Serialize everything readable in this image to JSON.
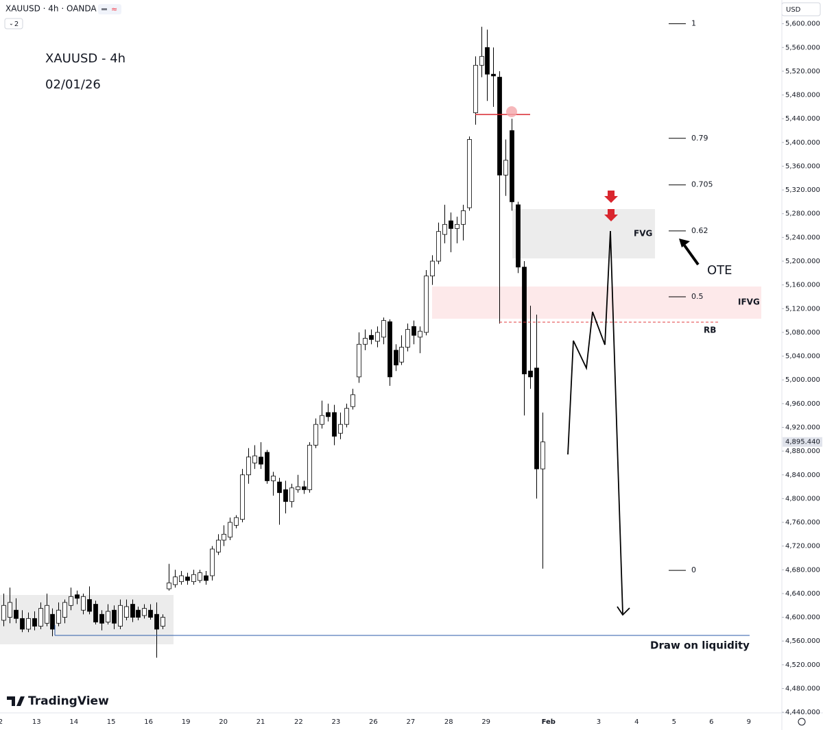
{
  "header": {
    "symbol": "XAUUSD · 4h · OANDA",
    "indicator_count": 2,
    "currency": "USD"
  },
  "watermark": "TradingView",
  "chart_data": {
    "type": "candlestick",
    "title": "XAUUSD - 4h",
    "subtitle": "02/01/26",
    "open": [
      4595,
      4600,
      4612,
      4598,
      4580,
      4598,
      4585,
      4590,
      4605,
      4590,
      4600,
      4620,
      4638,
      4612,
      4630,
      4622,
      4605,
      4592,
      4612,
      4585,
      4600,
      4622,
      4612,
      4603,
      4612,
      4605,
      4585,
      4648,
      4655,
      4660,
      4668,
      4660,
      4662,
      4670,
      4670,
      4710,
      4730,
      4735,
      4755,
      4765,
      4840,
      4860,
      4870,
      4878,
      4830,
      4828,
      4815,
      4795,
      4815,
      4820,
      4815,
      4890,
      4925,
      4945,
      4945,
      4910,
      4925,
      4955,
      5005,
      5060,
      5075,
      5065,
      5072,
      5098,
      5050,
      5030,
      5055,
      5090,
      5072,
      5080,
      5175,
      5200,
      5245,
      5268,
      5255,
      5262,
      5290,
      5450,
      5530,
      5560,
      5515,
      5510,
      5345,
      5420,
      5295,
      5190,
      5015,
      5020,
      4850
    ],
    "high": [
      4640,
      4650,
      4632,
      4612,
      4608,
      4610,
      4625,
      4640,
      4615,
      4625,
      4630,
      4650,
      4645,
      4640,
      4652,
      4628,
      4612,
      4622,
      4620,
      4630,
      4630,
      4630,
      4618,
      4622,
      4622,
      4625,
      4605,
      4690,
      4680,
      4678,
      4675,
      4680,
      4680,
      4678,
      4720,
      4740,
      4755,
      4768,
      4772,
      4850,
      4885,
      4890,
      4895,
      4882,
      4845,
      4835,
      4830,
      4825,
      4840,
      4830,
      4895,
      4935,
      4965,
      4960,
      4958,
      4945,
      4960,
      4985,
      5080,
      5085,
      5085,
      5090,
      5105,
      5102,
      5060,
      5075,
      5095,
      5100,
      5090,
      5185,
      5210,
      5265,
      5295,
      5282,
      5275,
      5295,
      5410,
      5545,
      5595,
      5590,
      5560,
      5520,
      5405,
      5440,
      5300,
      5200,
      5125,
      5110,
      4945
    ],
    "low": [
      4585,
      4590,
      4590,
      4575,
      4575,
      4578,
      4580,
      4585,
      4568,
      4585,
      4590,
      4612,
      4622,
      4605,
      4605,
      4588,
      4578,
      4588,
      4580,
      4580,
      4595,
      4592,
      4595,
      4598,
      4596,
      4532,
      4580,
      4645,
      4650,
      4655,
      4655,
      4655,
      4658,
      4655,
      4662,
      4705,
      4720,
      4730,
      4750,
      4760,
      4825,
      4850,
      4850,
      4825,
      4805,
      4756,
      4775,
      4785,
      4810,
      4808,
      4810,
      4885,
      4918,
      4930,
      4890,
      4900,
      4920,
      4950,
      4995,
      5050,
      5060,
      5055,
      5060,
      4990,
      5015,
      5025,
      5048,
      5060,
      5045,
      5075,
      5160,
      5195,
      5230,
      5215,
      5230,
      5235,
      5285,
      5430,
      5510,
      5470,
      5460,
      5095,
      5310,
      5285,
      5180,
      4940,
      4985,
      4800,
      4682
    ],
    "close": [
      4620,
      4625,
      4598,
      4580,
      4598,
      4585,
      4615,
      4620,
      4580,
      4612,
      4625,
      4635,
      4632,
      4635,
      4610,
      4592,
      4590,
      4610,
      4590,
      4620,
      4618,
      4600,
      4600,
      4615,
      4600,
      4580,
      4600,
      4658,
      4668,
      4670,
      4662,
      4672,
      4675,
      4662,
      4715,
      4730,
      4740,
      4760,
      4768,
      4840,
      4870,
      4872,
      4858,
      4830,
      4838,
      4810,
      4795,
      4818,
      4820,
      4815,
      4890,
      4925,
      4940,
      4938,
      4905,
      4925,
      4952,
      4975,
      5060,
      5070,
      5068,
      5080,
      5100,
      5005,
      5025,
      5055,
      5085,
      5075,
      5082,
      5175,
      5200,
      5250,
      5262,
      5255,
      5262,
      5285,
      5405,
      5530,
      5545,
      5515,
      5512,
      5345,
      5370,
      5300,
      5190,
      5010,
      5005,
      4850,
      4895.44
    ],
    "up_color": "#ffffff",
    "down_color": "#000000",
    "wick_color": "#000000",
    "ylim": [
      4439,
      5640
    ],
    "yticks": [
      {
        "value": 5600,
        "label": "5,600.000"
      },
      {
        "value": 5560,
        "label": "5,560.000"
      },
      {
        "value": 5520,
        "label": "5,520.000"
      },
      {
        "value": 5480,
        "label": "5,480.000"
      },
      {
        "value": 5440,
        "label": "5,440.000"
      },
      {
        "value": 5400,
        "label": "5,400.000"
      },
      {
        "value": 5360,
        "label": "5,360.000"
      },
      {
        "value": 5320,
        "label": "5,320.000"
      },
      {
        "value": 5280,
        "label": "5,280.000"
      },
      {
        "value": 5240,
        "label": "5,240.000"
      },
      {
        "value": 5200,
        "label": "5,200.000"
      },
      {
        "value": 5160,
        "label": "5,160.000"
      },
      {
        "value": 5120,
        "label": "5,120.000"
      },
      {
        "value": 5080,
        "label": "5,080.000"
      },
      {
        "value": 5040,
        "label": "5,040.000"
      },
      {
        "value": 5000,
        "label": "5,000.000"
      },
      {
        "value": 4960,
        "label": "4,960.000"
      },
      {
        "value": 4920,
        "label": "4,920.000"
      },
      {
        "value": 4880,
        "label": "4,880.000"
      },
      {
        "value": 4840,
        "label": "4,840.000"
      },
      {
        "value": 4800,
        "label": "4,800.000"
      },
      {
        "value": 4760,
        "label": "4,760.000"
      },
      {
        "value": 4720,
        "label": "4,720.000"
      },
      {
        "value": 4680,
        "label": "4,680.000"
      },
      {
        "value": 4640,
        "label": "4,640.000"
      },
      {
        "value": 4600,
        "label": "4,600.000"
      },
      {
        "value": 4560,
        "label": "4,560.000"
      },
      {
        "value": 4520,
        "label": "4,520.000"
      },
      {
        "value": 4480,
        "label": "4,480.000"
      },
      {
        "value": 4440,
        "label": "4,440.000"
      }
    ],
    "xlim": [
      -0.56,
      127.1
    ],
    "xticks": [
      {
        "value": -0.45,
        "label": "2"
      },
      {
        "value": 5.4,
        "label": "13"
      },
      {
        "value": 11.5,
        "label": "14"
      },
      {
        "value": 17.6,
        "label": "15"
      },
      {
        "value": 23.7,
        "label": "16"
      },
      {
        "value": 29.8,
        "label": "19"
      },
      {
        "value": 35.9,
        "label": "20"
      },
      {
        "value": 42,
        "label": "21"
      },
      {
        "value": 48.2,
        "label": "22"
      },
      {
        "value": 54.3,
        "label": "23"
      },
      {
        "value": 60.4,
        "label": "26"
      },
      {
        "value": 66.5,
        "label": "27"
      },
      {
        "value": 72.7,
        "label": "28"
      },
      {
        "value": 78.8,
        "label": "29"
      },
      {
        "value": 89,
        "label": "Feb"
      },
      {
        "value": 97.2,
        "label": "3"
      },
      {
        "value": 103.4,
        "label": "4"
      },
      {
        "value": 109.5,
        "label": "5"
      },
      {
        "value": 115.6,
        "label": "6"
      },
      {
        "value": 121.7,
        "label": "9"
      }
    ],
    "last_price": {
      "value": 4895.44,
      "label": "4,895.440"
    },
    "fib": [
      {
        "level": 1,
        "price": 5600
      },
      {
        "level": 0.79,
        "price": 5407
      },
      {
        "level": 0.705,
        "price": 5328.5
      },
      {
        "level": 0.62,
        "price": 5251
      },
      {
        "level": 0.5,
        "price": 5140
      },
      {
        "level": 0,
        "price": 4679
      }
    ],
    "annotations": {
      "fvg": "FVG",
      "ifvg": "IFVG",
      "rb": "RB",
      "ote": "OTE",
      "liquidity": "Draw on liquidity"
    }
  }
}
